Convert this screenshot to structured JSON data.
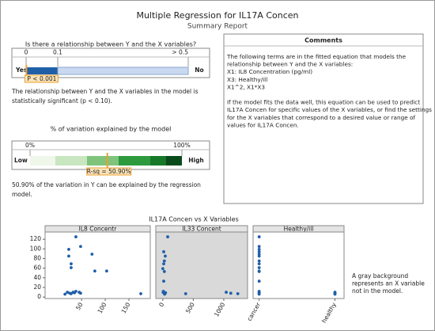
{
  "title": "Multiple Regression for IL17A Concen",
  "subtitle": "Summary Report",
  "relationship": {
    "heading": "Is there a relationship between Y and the X variables?",
    "ticks": [
      {
        "value": 0,
        "label": "0"
      },
      {
        "value": 0.1,
        "label": "0.1"
      },
      {
        "value": 0.5,
        "label": "> 0.5"
      }
    ],
    "left": "Yes",
    "right": "No",
    "p_value": 0.001,
    "p_label": "P < 0.001",
    "text": [
      "The relationship between Y and the X variables in the model is",
      "statistically significant (p < 0.10)."
    ]
  },
  "variation": {
    "heading": "% of variation explained by the model",
    "ticks": [
      {
        "value": 0,
        "label": "0%"
      },
      {
        "value": 100,
        "label": "100%"
      }
    ],
    "left": "Low",
    "right": "High",
    "r_sq": 50.9,
    "r_sq_label": "R-sq = 50.90%",
    "text": [
      "50.90% of the variation in Y can be explained by the regression",
      "model."
    ]
  },
  "comments": {
    "heading": "Comments",
    "paragraphs": [
      [
        "The following terms are in the fitted equation that models the",
        "relationship between Y and the X variables:",
        "X1: IL8 Concentration (pg/ml)",
        "X3: Healthy/ill",
        "X1^2, X1*X3"
      ],
      [
        "If the model fits the data well, this equation can be used to predict",
        "IL17A Concen for specific values of the X variables, or find the settings",
        "for the X variables that correspond to a desired value or range of",
        "values for IL17A Concen."
      ]
    ]
  },
  "scatter_title": "IL17A Concen vs X Variables",
  "note": [
    "A gray background",
    "represents an X variable",
    "not in the model."
  ],
  "chart_data": [
    {
      "type": "scatter",
      "title": "IL8 Concentr",
      "in_model": true,
      "color": "#1f5fa8",
      "x": [
        38,
        48,
        23,
        28,
        28,
        72,
        78,
        103,
        23,
        20,
        25,
        32,
        38,
        45,
        28,
        48,
        15,
        35,
        175
      ],
      "values": [
        125,
        105,
        85,
        69,
        61,
        89,
        54,
        54,
        99,
        10,
        8,
        10,
        12,
        10,
        7,
        8,
        6,
        9,
        7
      ],
      "xlim": [
        -27,
        195
      ],
      "xticks": [
        50,
        100,
        150
      ],
      "ylim": [
        -3,
        135
      ],
      "yticks": [
        0,
        20,
        40,
        60,
        80,
        100,
        120
      ]
    },
    {
      "type": "scatter",
      "title": "IL33 Concent",
      "in_model": false,
      "color": "#1f5fa8",
      "x": [
        80,
        15,
        40,
        25,
        15,
        0,
        25,
        15,
        5,
        20,
        30,
        10,
        45,
        375,
        1040,
        1115,
        1230
      ],
      "values": [
        125,
        94,
        85,
        75,
        69,
        59,
        53,
        33,
        10,
        8,
        6,
        12,
        9,
        7,
        10,
        8,
        7
      ],
      "xlim": [
        -115,
        1390
      ],
      "xticks": [
        0,
        500,
        1000
      ],
      "ylim": [
        -3,
        135
      ]
    },
    {
      "type": "scatter",
      "title": "Healthy/ill",
      "in_model": true,
      "color": "#1f5fa8",
      "categories": [
        "cancer",
        "healthy"
      ],
      "x": [
        "cancer",
        "cancer",
        "cancer",
        "cancer",
        "cancer",
        "cancer",
        "cancer",
        "cancer",
        "cancer",
        "cancer",
        "cancer",
        "cancer",
        "cancer",
        "cancer",
        "cancer",
        "cancer",
        "cancer",
        "healthy",
        "healthy",
        "healthy",
        "healthy"
      ],
      "values": [
        125,
        105,
        99,
        94,
        89,
        85,
        75,
        69,
        61,
        54,
        53,
        33,
        12,
        10,
        9,
        8,
        6,
        10,
        8,
        7,
        6
      ],
      "ylim": [
        -3,
        135
      ]
    }
  ]
}
